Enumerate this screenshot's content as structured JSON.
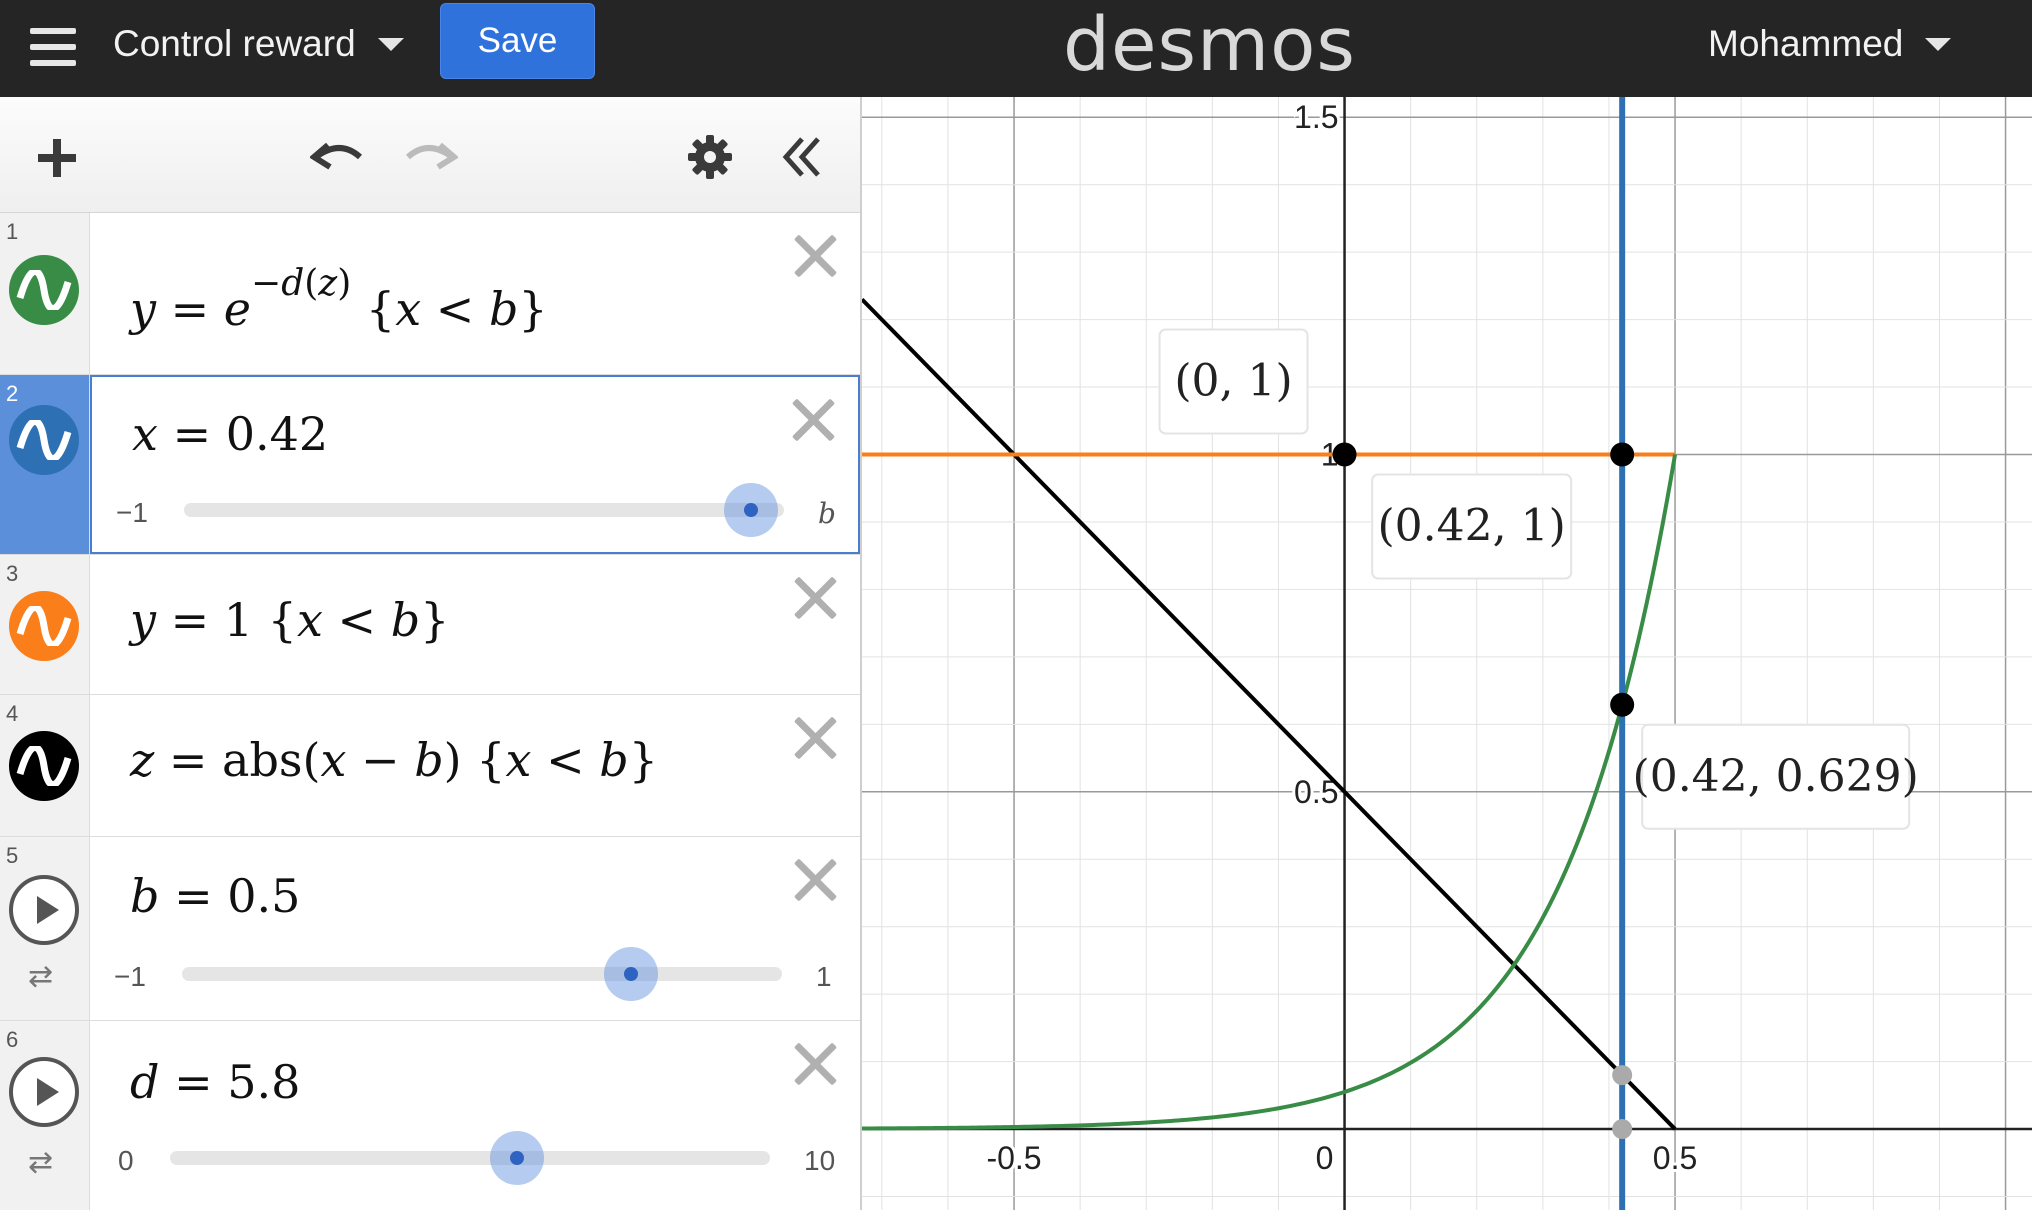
{
  "topbar": {
    "graph_title": "Control reward",
    "save_label": "Save",
    "logo": "desmos",
    "user_name": "Mohammed"
  },
  "colors": {
    "green": "#388c46",
    "blue": "#2d70b3",
    "orange": "#fa7e19",
    "black": "#000000"
  },
  "expressions": [
    {
      "index": "1",
      "color": "green",
      "icon": "wave-icon",
      "latex": "y=e^{-d(z)}{x<b}"
    },
    {
      "index": "2",
      "color": "blue",
      "icon": "wave-icon",
      "latex": "x=0.42",
      "slider": {
        "min": "−1",
        "max": "b",
        "value": 0.42
      }
    },
    {
      "index": "3",
      "color": "orange",
      "icon": "wave-icon",
      "latex": "y=1{x<b}"
    },
    {
      "index": "4",
      "color": "black",
      "icon": "wave-icon",
      "latex": "z=abs(x−b){x<b}"
    },
    {
      "index": "5",
      "icon": "play-icon",
      "latex": "b=0.5",
      "slider": {
        "min": "−1",
        "max": "1",
        "value": 0.5
      }
    },
    {
      "index": "6",
      "icon": "play-icon",
      "latex": "d=5.8",
      "slider": {
        "min": "0",
        "max": "10",
        "value": 5.8
      }
    }
  ],
  "graph": {
    "x_ticks": [
      "-0.5",
      "0",
      "0.5"
    ],
    "y_ticks": [
      "0.5",
      "1",
      "1.5"
    ],
    "x_range": [
      -0.73,
      1.04
    ],
    "y_range": [
      -0.12,
      1.53
    ],
    "point_labels": [
      "(0, 1)",
      "(0.42, 1)",
      "(0.42, 0.629)"
    ],
    "points": [
      {
        "x": 0,
        "y": 1,
        "label": "(0, 1)"
      },
      {
        "x": 0.42,
        "y": 1,
        "label": "(0.42, 1)"
      },
      {
        "x": 0.42,
        "y": 0.629,
        "label": "(0.42, 0.629)"
      }
    ],
    "grey_points": [
      {
        "x": 0.42,
        "y": 0.08
      },
      {
        "x": 0.42,
        "y": 0
      }
    ],
    "params": {
      "b": 0.5,
      "d": 5.8,
      "x": 0.42
    }
  }
}
